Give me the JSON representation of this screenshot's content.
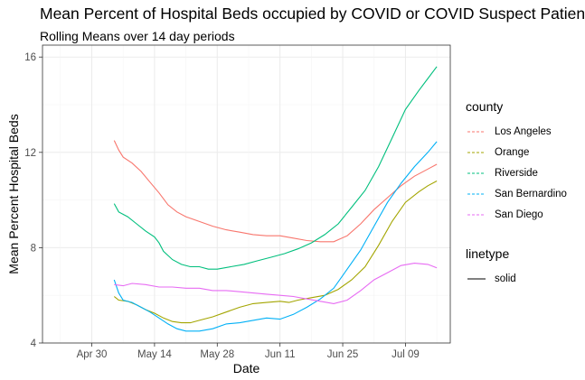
{
  "chart_data": {
    "type": "line",
    "title": "Mean Percent of Hospital Beds occupied by COVID or COVID Suspect Patients",
    "subtitle": "Rolling Means over 14 day periods",
    "xlabel": "Date",
    "ylabel": "Mean Percent Hospital Beds",
    "x_ticks": [
      "Apr 30",
      "May 14",
      "May 28",
      "Jun 11",
      "Jun 25",
      "Jul 09"
    ],
    "x_tick_dates": [
      "2020-04-30",
      "2020-05-14",
      "2020-05-28",
      "2020-06-11",
      "2020-06-25",
      "2020-07-09"
    ],
    "y_ticks": [
      4,
      8,
      12,
      16
    ],
    "xlim": [
      "2020-04-19",
      "2020-07-19"
    ],
    "ylim": [
      4,
      16.5
    ],
    "grid": true,
    "legend": {
      "position": "right",
      "color_title": "county",
      "linetype_title": "linetype",
      "linetype_entries": [
        "solid"
      ]
    },
    "series": [
      {
        "name": "Los Angeles",
        "color": "#F8766D",
        "points": [
          [
            "2020-05-05",
            12.5
          ],
          [
            "2020-05-06",
            12.1
          ],
          [
            "2020-05-07",
            11.8
          ],
          [
            "2020-05-09",
            11.55
          ],
          [
            "2020-05-11",
            11.2
          ],
          [
            "2020-05-13",
            10.75
          ],
          [
            "2020-05-15",
            10.3
          ],
          [
            "2020-05-17",
            9.8
          ],
          [
            "2020-05-19",
            9.5
          ],
          [
            "2020-05-21",
            9.3
          ],
          [
            "2020-05-24",
            9.1
          ],
          [
            "2020-05-27",
            8.9
          ],
          [
            "2020-05-30",
            8.75
          ],
          [
            "2020-06-02",
            8.65
          ],
          [
            "2020-06-05",
            8.55
          ],
          [
            "2020-06-08",
            8.5
          ],
          [
            "2020-06-11",
            8.5
          ],
          [
            "2020-06-14",
            8.4
          ],
          [
            "2020-06-17",
            8.3
          ],
          [
            "2020-06-20",
            8.25
          ],
          [
            "2020-06-23",
            8.25
          ],
          [
            "2020-06-26",
            8.5
          ],
          [
            "2020-06-29",
            9.0
          ],
          [
            "2020-07-02",
            9.6
          ],
          [
            "2020-07-05",
            10.1
          ],
          [
            "2020-07-08",
            10.6
          ],
          [
            "2020-07-11",
            11.0
          ],
          [
            "2020-07-14",
            11.3
          ],
          [
            "2020-07-16",
            11.5
          ]
        ]
      },
      {
        "name": "Orange",
        "color": "#A3A500",
        "points": [
          [
            "2020-05-05",
            5.95
          ],
          [
            "2020-05-06",
            5.8
          ],
          [
            "2020-05-08",
            5.75
          ],
          [
            "2020-05-10",
            5.6
          ],
          [
            "2020-05-12",
            5.4
          ],
          [
            "2020-05-14",
            5.25
          ],
          [
            "2020-05-16",
            5.05
          ],
          [
            "2020-05-18",
            4.9
          ],
          [
            "2020-05-20",
            4.85
          ],
          [
            "2020-05-22",
            4.85
          ],
          [
            "2020-05-24",
            4.95
          ],
          [
            "2020-05-27",
            5.1
          ],
          [
            "2020-05-30",
            5.3
          ],
          [
            "2020-06-02",
            5.5
          ],
          [
            "2020-06-05",
            5.65
          ],
          [
            "2020-06-08",
            5.7
          ],
          [
            "2020-06-11",
            5.75
          ],
          [
            "2020-06-13",
            5.7
          ],
          [
            "2020-06-15",
            5.8
          ],
          [
            "2020-06-18",
            5.9
          ],
          [
            "2020-06-21",
            6.0
          ],
          [
            "2020-06-24",
            6.25
          ],
          [
            "2020-06-27",
            6.65
          ],
          [
            "2020-06-30",
            7.2
          ],
          [
            "2020-07-03",
            8.1
          ],
          [
            "2020-07-06",
            9.1
          ],
          [
            "2020-07-09",
            9.9
          ],
          [
            "2020-07-12",
            10.35
          ],
          [
            "2020-07-14",
            10.6
          ],
          [
            "2020-07-16",
            10.8
          ]
        ]
      },
      {
        "name": "Riverside",
        "color": "#00BF7D",
        "points": [
          [
            "2020-05-05",
            9.85
          ],
          [
            "2020-05-06",
            9.5
          ],
          [
            "2020-05-08",
            9.3
          ],
          [
            "2020-05-10",
            9.0
          ],
          [
            "2020-05-12",
            8.7
          ],
          [
            "2020-05-14",
            8.45
          ],
          [
            "2020-05-15",
            8.2
          ],
          [
            "2020-05-16",
            7.85
          ],
          [
            "2020-05-18",
            7.5
          ],
          [
            "2020-05-20",
            7.3
          ],
          [
            "2020-05-22",
            7.2
          ],
          [
            "2020-05-24",
            7.2
          ],
          [
            "2020-05-26",
            7.1
          ],
          [
            "2020-05-28",
            7.1
          ],
          [
            "2020-05-31",
            7.2
          ],
          [
            "2020-06-03",
            7.3
          ],
          [
            "2020-06-06",
            7.45
          ],
          [
            "2020-06-09",
            7.6
          ],
          [
            "2020-06-12",
            7.75
          ],
          [
            "2020-06-15",
            7.95
          ],
          [
            "2020-06-18",
            8.2
          ],
          [
            "2020-06-21",
            8.55
          ],
          [
            "2020-06-24",
            9.0
          ],
          [
            "2020-06-27",
            9.7
          ],
          [
            "2020-06-30",
            10.4
          ],
          [
            "2020-07-03",
            11.4
          ],
          [
            "2020-07-06",
            12.6
          ],
          [
            "2020-07-09",
            13.8
          ],
          [
            "2020-07-12",
            14.6
          ],
          [
            "2020-07-14",
            15.1
          ],
          [
            "2020-07-16",
            15.6
          ]
        ]
      },
      {
        "name": "San Bernardino",
        "color": "#00B0F6",
        "points": [
          [
            "2020-05-05",
            6.65
          ],
          [
            "2020-05-06",
            6.1
          ],
          [
            "2020-05-07",
            5.8
          ],
          [
            "2020-05-09",
            5.7
          ],
          [
            "2020-05-11",
            5.5
          ],
          [
            "2020-05-13",
            5.3
          ],
          [
            "2020-05-15",
            5.05
          ],
          [
            "2020-05-17",
            4.8
          ],
          [
            "2020-05-19",
            4.6
          ],
          [
            "2020-05-21",
            4.5
          ],
          [
            "2020-05-24",
            4.5
          ],
          [
            "2020-05-27",
            4.6
          ],
          [
            "2020-05-30",
            4.8
          ],
          [
            "2020-06-02",
            4.85
          ],
          [
            "2020-06-05",
            4.95
          ],
          [
            "2020-06-08",
            5.05
          ],
          [
            "2020-06-11",
            5.0
          ],
          [
            "2020-06-14",
            5.2
          ],
          [
            "2020-06-17",
            5.5
          ],
          [
            "2020-06-20",
            5.85
          ],
          [
            "2020-06-23",
            6.3
          ],
          [
            "2020-06-26",
            7.1
          ],
          [
            "2020-06-29",
            7.9
          ],
          [
            "2020-07-02",
            8.9
          ],
          [
            "2020-07-05",
            9.9
          ],
          [
            "2020-07-08",
            10.7
          ],
          [
            "2020-07-11",
            11.4
          ],
          [
            "2020-07-14",
            12.0
          ],
          [
            "2020-07-16",
            12.45
          ]
        ]
      },
      {
        "name": "San Diego",
        "color": "#E76BF3",
        "points": [
          [
            "2020-05-05",
            6.45
          ],
          [
            "2020-05-07",
            6.4
          ],
          [
            "2020-05-09",
            6.5
          ],
          [
            "2020-05-12",
            6.45
          ],
          [
            "2020-05-15",
            6.35
          ],
          [
            "2020-05-18",
            6.35
          ],
          [
            "2020-05-21",
            6.3
          ],
          [
            "2020-05-24",
            6.3
          ],
          [
            "2020-05-27",
            6.2
          ],
          [
            "2020-05-30",
            6.2
          ],
          [
            "2020-06-02",
            6.15
          ],
          [
            "2020-06-05",
            6.1
          ],
          [
            "2020-06-08",
            6.05
          ],
          [
            "2020-06-11",
            6.0
          ],
          [
            "2020-06-14",
            5.95
          ],
          [
            "2020-06-17",
            5.85
          ],
          [
            "2020-06-20",
            5.75
          ],
          [
            "2020-06-23",
            5.65
          ],
          [
            "2020-06-26",
            5.8
          ],
          [
            "2020-06-29",
            6.2
          ],
          [
            "2020-07-02",
            6.65
          ],
          [
            "2020-07-05",
            6.95
          ],
          [
            "2020-07-08",
            7.25
          ],
          [
            "2020-07-11",
            7.35
          ],
          [
            "2020-07-14",
            7.3
          ],
          [
            "2020-07-16",
            7.15
          ]
        ]
      }
    ]
  }
}
